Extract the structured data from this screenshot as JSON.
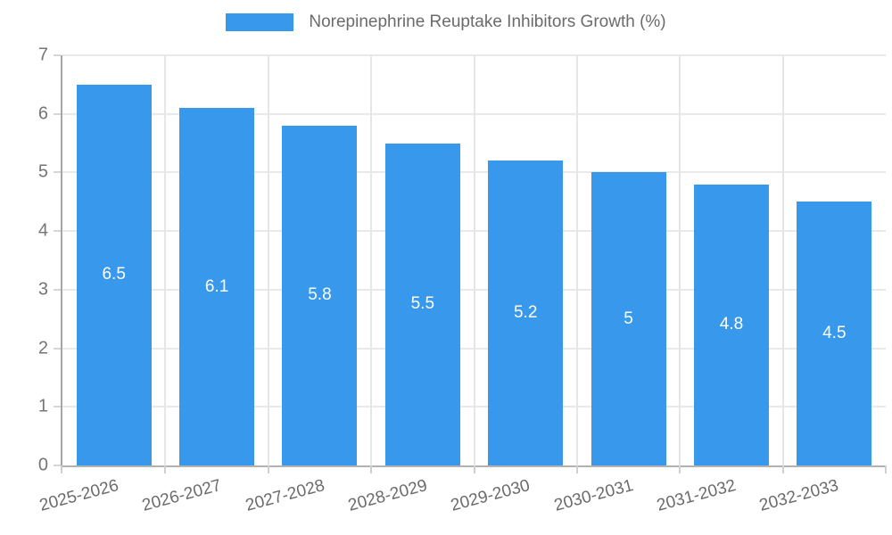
{
  "chart_data": {
    "type": "bar",
    "legend_label": "Norepinephrine Reuptake Inhibitors Growth (%)",
    "categories": [
      "2025-2026",
      "2026-2027",
      "2027-2028",
      "2028-2029",
      "2029-2030",
      "2030-2031",
      "2031-2032",
      "2032-2033"
    ],
    "values": [
      6.5,
      6.1,
      5.8,
      5.5,
      5.2,
      5,
      4.8,
      4.5
    ],
    "bar_labels": [
      "6.5",
      "6.1",
      "5.8",
      "5.5",
      "5.2",
      "5",
      "4.8",
      "4.5"
    ],
    "y_ticks": [
      0,
      1,
      2,
      3,
      4,
      5,
      6,
      7
    ],
    "ylim": [
      0,
      7
    ],
    "xlabel": "",
    "ylabel": "",
    "grid": true,
    "legend_position": "top",
    "colors": {
      "bar": "#3899ec",
      "bar_label": "#ffffff",
      "axis_text": "#6b6b6b",
      "y_axis_text": "#757575",
      "grid_line": "#e9e9e9",
      "axis_line": "#a6a6a6"
    }
  }
}
